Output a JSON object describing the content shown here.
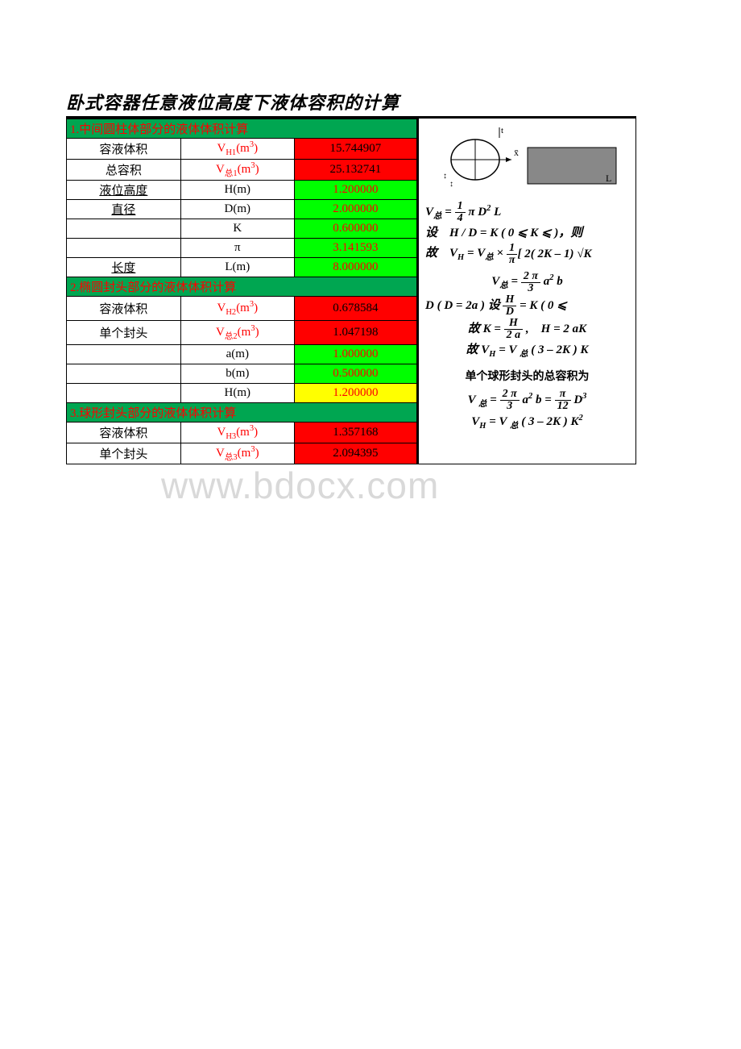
{
  "title": "卧式容器任意液位高度下液体容积的计算",
  "watermark": "www.bdocx.com",
  "section1": {
    "header": "1.中间圆柱体部分的液体体积计算",
    "rows": [
      {
        "label": "容液体积",
        "symbol": "V<sub>H1</sub>(m<sup>3</sup>)",
        "value": "15.744907",
        "valClass": "val-red-bg"
      },
      {
        "label": "总容积",
        "symbol": "V<sub>总1</sub>(m<sup>3</sup>)",
        "value": "25.132741",
        "valClass": "val-red-bg"
      },
      {
        "label": "液位高度",
        "symbol": "H(m)",
        "value": "1.200000",
        "valClass": "val-green-bg"
      },
      {
        "label": "直径",
        "symbol": "D(m)",
        "value": "2.000000",
        "valClass": "val-green-bg"
      },
      {
        "label": "",
        "symbol": "K",
        "value": "0.600000",
        "valClass": "val-green-bg"
      },
      {
        "label": "",
        "symbol": "π",
        "value": "3.141593",
        "valClass": "val-green-bg"
      },
      {
        "label": "长度",
        "symbol": "L(m)",
        "value": "8.000000",
        "valClass": "val-green-bg"
      }
    ]
  },
  "section2": {
    "header": "2.椭圆封头部分的液体体积计算",
    "rows": [
      {
        "label": "容液体积",
        "symbol": "V<sub>H2</sub>(m<sup>3</sup>)",
        "value": "0.678584",
        "valClass": "val-red-bg"
      },
      {
        "label": "单个封头",
        "symbol": "V<sub>总2</sub>(m<sup>3</sup>)",
        "value": "1.047198",
        "valClass": "val-red-bg"
      },
      {
        "label": "",
        "symbol": "a(m)",
        "value": "1.000000",
        "valClass": "val-green-bg"
      },
      {
        "label": "",
        "symbol": "b(m)",
        "value": "0.500000",
        "valClass": "val-green-bg"
      },
      {
        "label": "",
        "symbol": "H(m)",
        "value": "1.200000",
        "valClass": "val-yellow-bg"
      }
    ]
  },
  "section3": {
    "header": "3.球形封头部分的液体体积计算",
    "rows": [
      {
        "label": "容液体积",
        "symbol": "V<sub>H3</sub>(m<sup>3</sup>)",
        "value": "1.357168",
        "valClass": "val-red-bg"
      },
      {
        "label": "单个封头",
        "symbol": "V<sub>总3</sub>(m<sup>3</sup>)",
        "value": "2.094395",
        "valClass": "val-red-bg"
      }
    ]
  },
  "formulas": {
    "f1_line1_lhs": "V<sub>总</sub> = ",
    "f1_line1_eq": " π D<sup>2</sup> L",
    "f1_line2": "设　H / D = K ( 0 ⩽ K ⩽ )，则",
    "f1_line3_lhs": "故　V<sub>H</sub> = V<sub>总</sub> × ",
    "f1_line3_rhs": "[ 2( 2K – 1)  √K",
    "f2_line1_lhs": "V<sub>总</sub> =  ",
    "f2_line1_rhs": " a<sup>2</sup> b",
    "f2_line2": "D ( D = 2a )  设 ",
    "f2_line2_rhs": " = K ( 0 ⩽",
    "f2_line3": "故  K = ",
    "f2_line3_rhs": " ,　H = 2 aK",
    "f2_line4": "故  V<sub>H</sub> = V <sub>总</sub> ( 3 – 2K ) K",
    "f3_title": "单个球形封头的总容积为",
    "f3_line1_lhs": "V <sub>总</sub> = ",
    "f3_line1_mid": " a<sup>2</sup> b = ",
    "f3_line1_rhs": " D<sup>3</sup>",
    "f3_line2": "V<sub>H</sub> = V <sub>总</sub>  ( 3 – 2K )  K<sup>2</sup>"
  }
}
